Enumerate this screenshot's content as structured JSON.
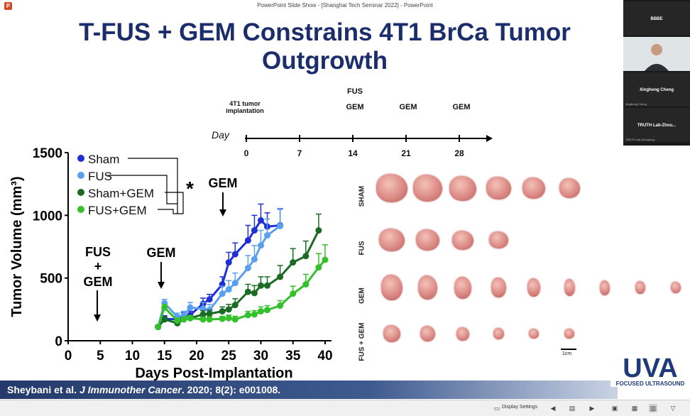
{
  "window": {
    "title": "PowerPoint Slide Show - [Shanghai Tech Seminar 2022] - PowerPoint",
    "app_icon": "P"
  },
  "slide": {
    "title_line1": "T-FUS + GEM Constrains 4T1 BrCa Tumor",
    "title_line2": "Outgrowth",
    "timeline": {
      "day_label": "Day",
      "ticks": [
        "0",
        "7",
        "14",
        "21",
        "28"
      ],
      "event_implant_1": "4T1 tumor",
      "event_implant_2": "implantation",
      "event_fus": "FUS",
      "event_gem_14": "GEM",
      "event_gem_21": "GEM",
      "event_gem_28": "GEM"
    },
    "annotations": {
      "fus": "FUS",
      "plus": "+",
      "gem_first": "GEM",
      "gem_21": "GEM",
      "gem_28": "GEM",
      "star": "*"
    },
    "photos": {
      "row_labels": [
        "SHAM",
        "FUS",
        "GEM",
        "FUS + GEM"
      ],
      "counts": [
        6,
        4,
        9,
        6
      ],
      "scale_label": "1cm"
    },
    "citation": {
      "authors": "Sheybani et al. ",
      "journal": "J Immunother Cancer",
      "rest": ". 2020; 8(2): e001008."
    },
    "logo": {
      "text": "UVA",
      "sub": "FOCUSED ULTRASOUND"
    }
  },
  "status_bar": {
    "display_settings": "Display Settings"
  },
  "video_panel": {
    "tiles": [
      {
        "name": "BBBE",
        "sub": ""
      },
      {
        "name": "",
        "sub": ""
      },
      {
        "name": "Xinghong Cheng",
        "sub": "Xinghong Cheng"
      },
      {
        "name": "TRUTH Lab-Zhou...",
        "sub": "TRUTH Lab-Zhoupeng..."
      }
    ]
  },
  "chart_data": {
    "type": "line",
    "title": "",
    "xlabel": "Days Post-Implantation",
    "ylabel": "Tumor Volume (mm³)",
    "xlim": [
      0,
      41
    ],
    "ylim": [
      0,
      1500
    ],
    "xticks": [
      0,
      5,
      10,
      15,
      20,
      25,
      30,
      35,
      40
    ],
    "yticks": [
      0,
      500,
      1000,
      1500
    ],
    "legend_position": "top-left",
    "significance_label": "*",
    "series": [
      {
        "name": "Sham",
        "color": "#1f2fd6",
        "x": [
          14,
          15,
          17,
          18,
          19,
          21,
          22,
          24,
          25,
          26,
          28,
          29,
          30,
          31,
          33
        ],
        "y": [
          110,
          175,
          170,
          195,
          205,
          295,
          330,
          450,
          625,
          690,
          800,
          880,
          960,
          910,
          920
        ],
        "err": [
          15,
          25,
          25,
          30,
          30,
          45,
          40,
          60,
          80,
          90,
          120,
          120,
          130,
          110,
          130
        ]
      },
      {
        "name": "FUS",
        "color": "#5aa0f0",
        "x": [
          14,
          15,
          17,
          18,
          19,
          21,
          22,
          24,
          25,
          26,
          28,
          29,
          30,
          31,
          33
        ],
        "y": [
          110,
          300,
          190,
          200,
          265,
          255,
          245,
          375,
          410,
          460,
          580,
          650,
          760,
          840,
          915
        ],
        "err": [
          15,
          30,
          30,
          35,
          40,
          50,
          45,
          60,
          70,
          80,
          100,
          110,
          120,
          130,
          140
        ]
      },
      {
        "name": "Sham+GEM",
        "color": "#1b6b24",
        "x": [
          14,
          15,
          17,
          18,
          19,
          21,
          22,
          24,
          25,
          26,
          28,
          29,
          30,
          31,
          33,
          35,
          37,
          39
        ],
        "y": [
          110,
          170,
          140,
          170,
          180,
          210,
          215,
          235,
          250,
          285,
          390,
          380,
          440,
          440,
          510,
          625,
          675,
          880
        ],
        "err": [
          15,
          20,
          20,
          20,
          25,
          30,
          30,
          35,
          40,
          50,
          60,
          60,
          70,
          70,
          90,
          110,
          120,
          130
        ]
      },
      {
        "name": "FUS+GEM",
        "color": "#34c02a",
        "x": [
          14,
          15,
          17,
          18,
          19,
          21,
          22,
          24,
          25,
          26,
          28,
          29,
          30,
          31,
          33,
          35,
          37,
          39,
          40
        ],
        "y": [
          110,
          265,
          160,
          170,
          180,
          170,
          170,
          175,
          180,
          170,
          205,
          210,
          235,
          245,
          280,
          375,
          450,
          585,
          645
        ],
        "err": [
          15,
          25,
          20,
          20,
          20,
          20,
          20,
          20,
          25,
          25,
          30,
          30,
          35,
          35,
          40,
          60,
          80,
          110,
          120
        ]
      }
    ]
  }
}
